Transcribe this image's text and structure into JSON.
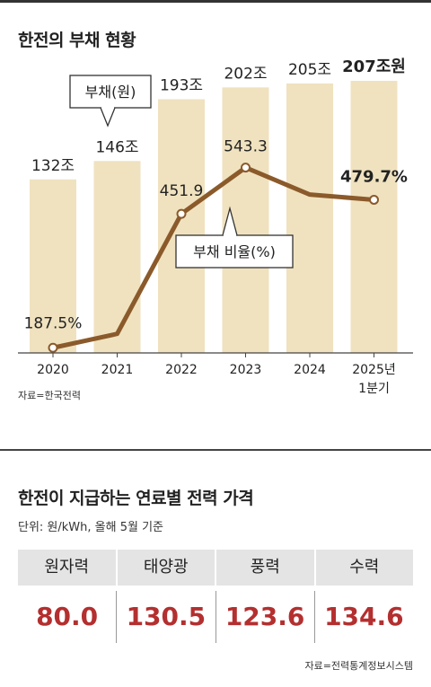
{
  "chart_data": {
    "type": "bar+line",
    "title": "한전의 부채 현황",
    "categories": [
      "2020",
      "2021",
      "2022",
      "2023",
      "2024",
      "2025년 1분기"
    ],
    "series": [
      {
        "name": "부채(원)",
        "type": "bar",
        "values": [
          132,
          146,
          193,
          202,
          205,
          207
        ],
        "labels": [
          "132조",
          "146조",
          "193조",
          "202조",
          "205조",
          "207조원"
        ]
      },
      {
        "name": "부채 비율(%)",
        "type": "line",
        "values": [
          187.5,
          215,
          451.9,
          543.3,
          490,
          479.7
        ],
        "labels": [
          "187.5%",
          "",
          "451.9",
          "543.3",
          "",
          "479.7%"
        ]
      }
    ],
    "source": "자료=한국전력",
    "colors": {
      "bar": "#f0e2bf",
      "line": "#8b5a2b"
    }
  },
  "table": {
    "title": "한전이 지급하는 연료별 전력 가격",
    "unit": "단위: 원/kWh, 올해 5월 기준",
    "headers": [
      "원자력",
      "태양광",
      "풍력",
      "수력"
    ],
    "values": [
      "80.0",
      "130.5",
      "123.6",
      "134.6"
    ],
    "source": "자료=전력통계정보시스템",
    "value_color": "#b42f2f"
  }
}
